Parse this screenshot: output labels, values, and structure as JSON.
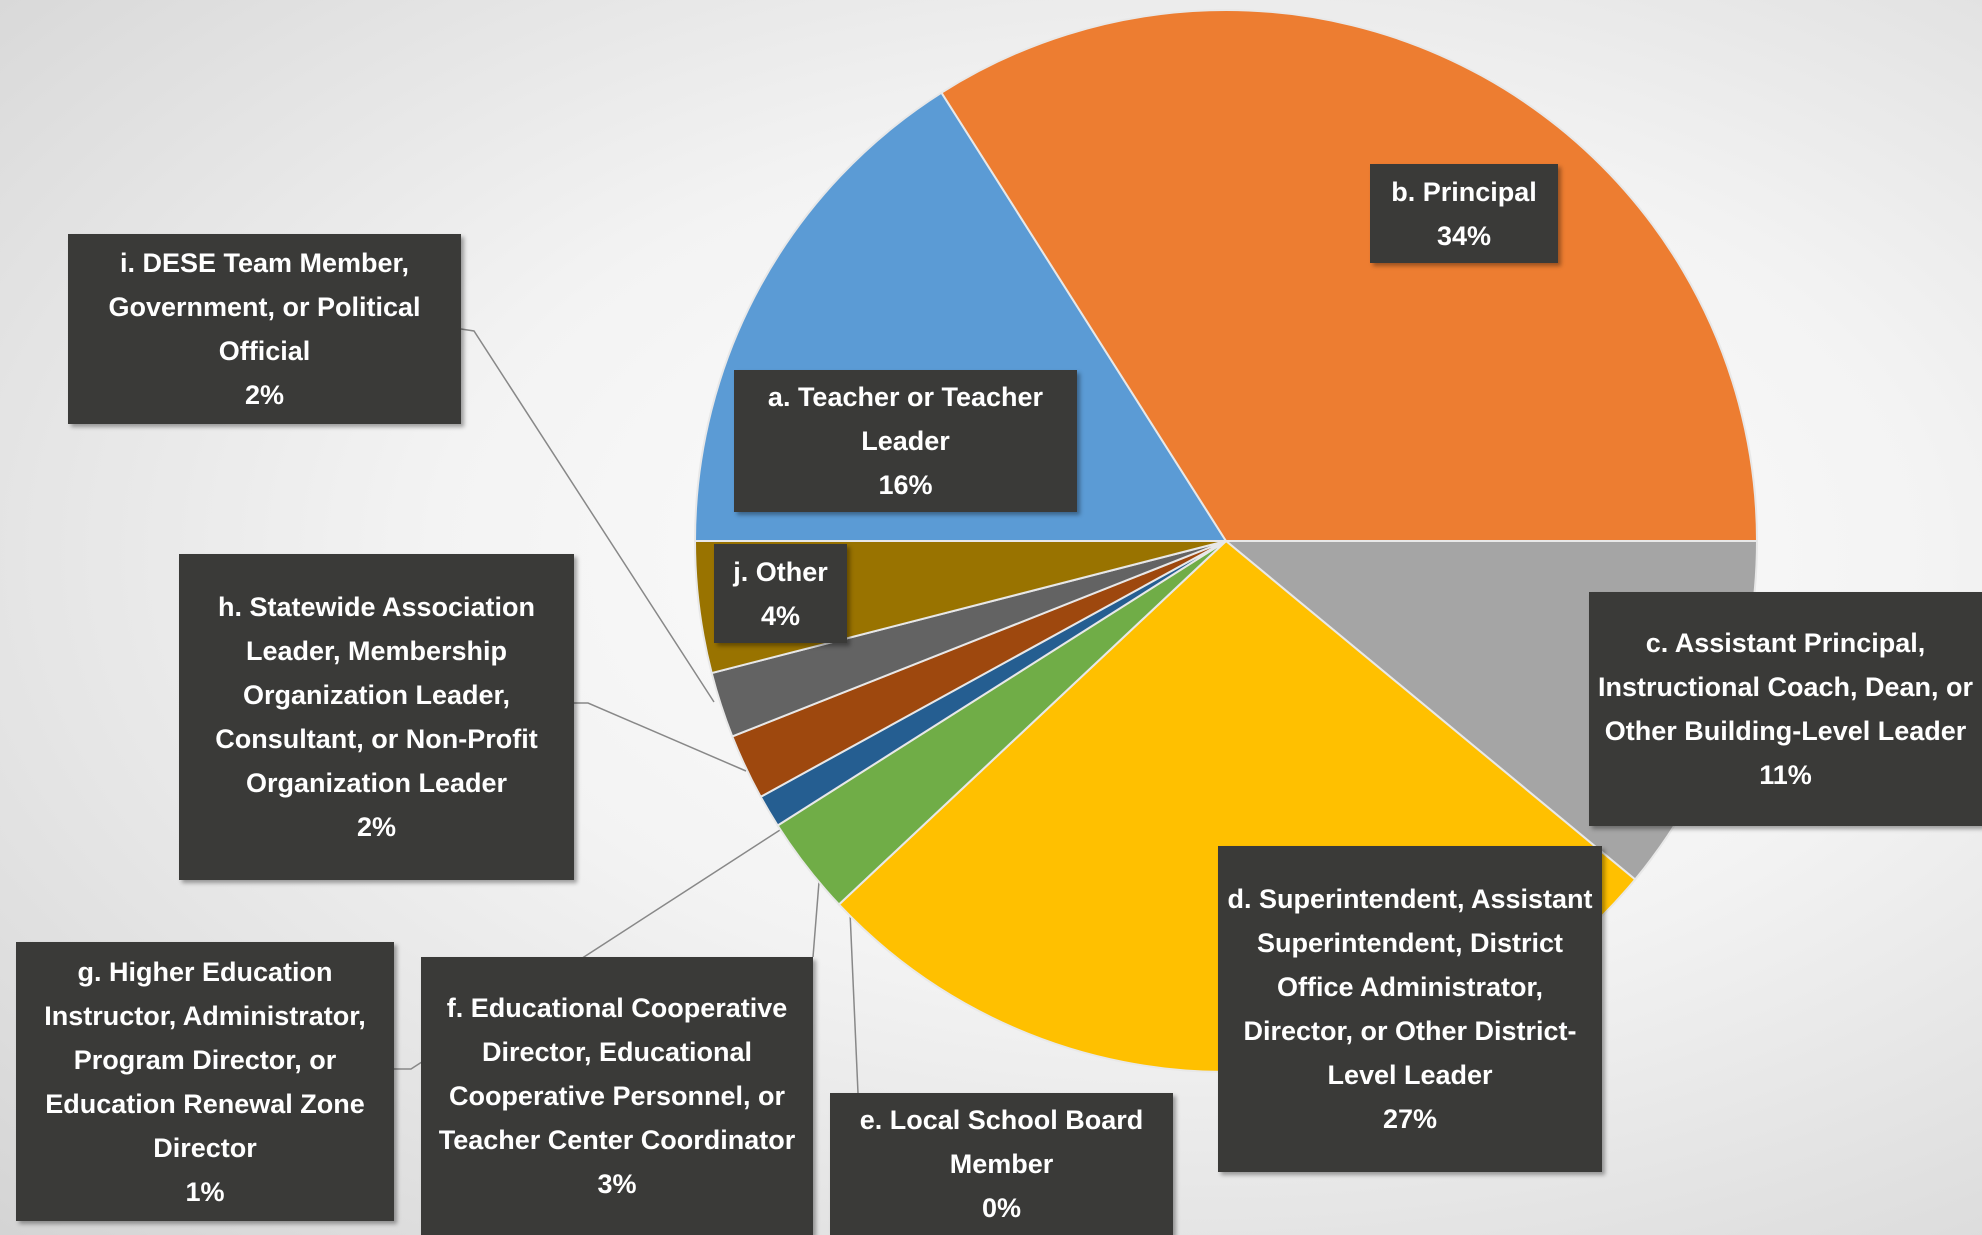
{
  "chart_data": {
    "type": "pie",
    "categories": [
      "a. Teacher or Teacher Leader",
      "b. Principal",
      "c. Assistant Principal, Instructional Coach, Dean, or Other Building-Level Leader",
      "d. Superintendent, Assistant Superintendent, District Office Administrator, Director, or Other District-Level Leader",
      "e. Local School Board Member",
      "f. Educational Cooperative Director, Educational Cooperative Personnel, or Teacher Center Coordinator",
      "g. Higher Education Instructor, Administrator, Program Director, or Education Renewal Zone Director",
      "h. Statewide Association Leader, Membership Organization Leader, Consultant, or Non-Profit Organization Leader",
      "i. DESE Team Member, Government, or Political Official",
      "j. Other"
    ],
    "values": [
      16,
      34,
      11,
      27,
      0,
      3,
      1,
      2,
      2,
      4
    ],
    "value_labels": [
      "16%",
      "34%",
      "11%",
      "27%",
      "0%",
      "3%",
      "1%",
      "2%",
      "2%",
      "4%"
    ],
    "colors": [
      "#5b9bd5",
      "#ed7d31",
      "#a5a5a5",
      "#ffc000",
      "#4472c4",
      "#70ad47",
      "#255e91",
      "#9e480e",
      "#636363",
      "#997300"
    ]
  }
}
